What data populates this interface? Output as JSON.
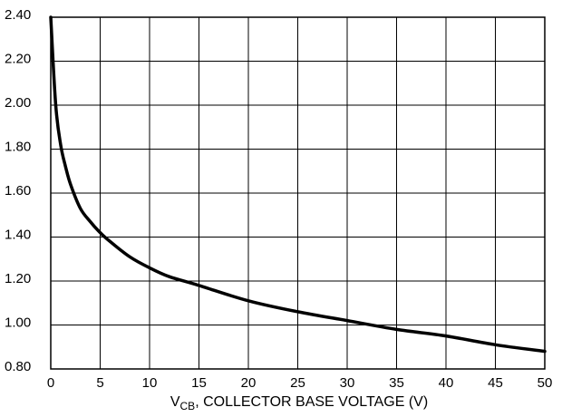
{
  "chart_data": {
    "type": "line",
    "title": "",
    "xlabel": {
      "prefix": "V",
      "subscript": "CB",
      "suffix": ", COLLECTOR BASE VOLTAGE (V)"
    },
    "ylabel": "",
    "xlim": [
      0,
      50
    ],
    "ylim": [
      0.8,
      2.4
    ],
    "xticks": [
      0,
      5,
      10,
      15,
      20,
      25,
      30,
      35,
      40,
      45,
      50
    ],
    "xtick_labels": [
      "0",
      "5",
      "10",
      "15",
      "20",
      "25",
      "30",
      "35",
      "40",
      "45",
      "50"
    ],
    "yticks": [
      0.8,
      1.0,
      1.2,
      1.4,
      1.6,
      1.8,
      2.0,
      2.2,
      2.4
    ],
    "ytick_labels": [
      "0.80",
      "1.00",
      "1.20",
      "1.40",
      "1.60",
      "1.80",
      "2.00",
      "2.20",
      "2.40"
    ],
    "grid": true,
    "series": [
      {
        "x": [
          0,
          0.5,
          1,
          1.5,
          2,
          3,
          4,
          5,
          6,
          8,
          10,
          12,
          15,
          20,
          25,
          30,
          35,
          40,
          45,
          50
        ],
        "y": [
          2.4,
          2.0,
          1.82,
          1.72,
          1.64,
          1.53,
          1.47,
          1.42,
          1.38,
          1.31,
          1.26,
          1.22,
          1.18,
          1.11,
          1.06,
          1.02,
          0.98,
          0.95,
          0.91,
          0.88
        ]
      }
    ],
    "line_color": "#000000"
  }
}
